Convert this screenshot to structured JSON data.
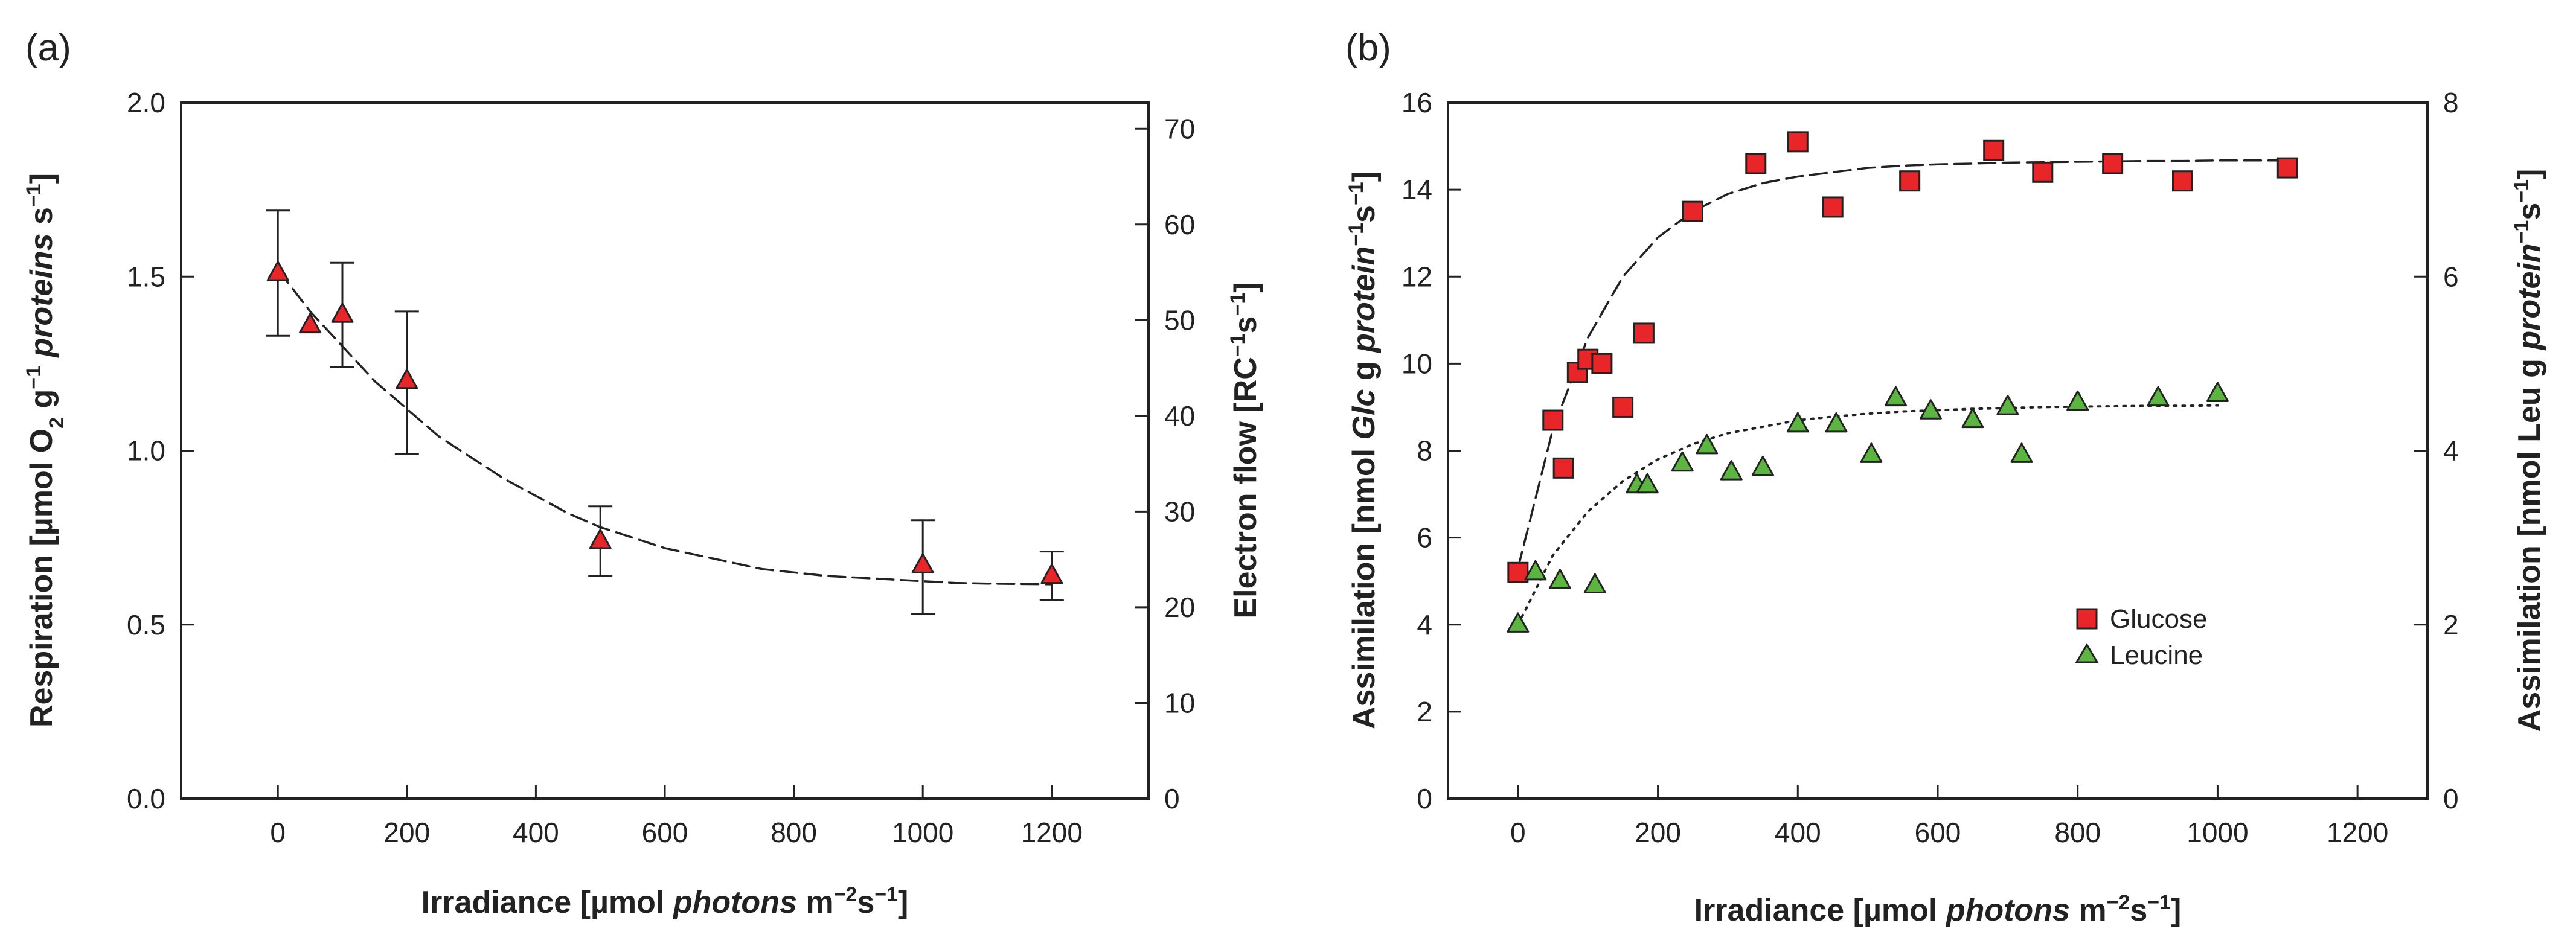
{
  "chart_data": [
    {
      "type": "scatter",
      "panel_label": "(a)",
      "xlabel": {
        "pre": "Irradiance [µmol ",
        "em": "photons",
        "post": " m",
        "sup1": "−2",
        "mid": "s",
        "sup2": "−1",
        "end": "]"
      },
      "ylabel": {
        "pre": "Respiration [µmol O",
        "sub": "2",
        "mid": " g",
        "sup1": "−1",
        "sp": " ",
        "em": "proteins",
        "mid2": " s",
        "sup2": "−1",
        "end": "]"
      },
      "y2label": {
        "pre": "Electron flow [RC",
        "sup1": "−1",
        "mid": "s",
        "sup2": "−1",
        "end": "]"
      },
      "xlim": [
        -150,
        1350
      ],
      "ylim": [
        0,
        2.0
      ],
      "y2lim": [
        0,
        72.73
      ],
      "xticks": [
        0,
        200,
        400,
        600,
        800,
        1000,
        1200
      ],
      "yticks": [
        "0.0",
        "0.5",
        "1.0",
        "1.5",
        "2.0"
      ],
      "y2ticks": [
        0,
        10,
        20,
        30,
        40,
        50,
        60,
        70
      ],
      "series": [
        {
          "name": "Respiration",
          "marker": "triangle",
          "color": "#e8262a",
          "x": [
            0,
            50,
            100,
            200,
            500,
            1000,
            1200
          ],
          "y": [
            1.51,
            1.36,
            1.39,
            1.2,
            0.74,
            0.67,
            0.64
          ],
          "err_low": [
            1.33,
            null,
            1.24,
            0.99,
            0.64,
            0.53,
            0.57
          ],
          "err_high": [
            1.69,
            null,
            1.54,
            1.4,
            0.84,
            0.8,
            0.71
          ]
        }
      ],
      "fit": {
        "style": "dashed",
        "x_range": [
          0,
          1200
        ],
        "y": [
          1.52,
          1.4,
          1.3,
          1.2,
          1.12,
          1.04,
          0.98,
          0.92,
          0.87,
          0.82,
          0.78,
          0.75,
          0.72,
          0.7,
          0.68,
          0.66,
          0.65,
          0.64,
          0.635,
          0.63,
          0.625,
          0.62,
          0.618,
          0.617,
          0.616
        ]
      }
    },
    {
      "type": "scatter",
      "panel_label": "(b)",
      "xlabel": {
        "pre": "Irradiance [µmol ",
        "em": "photons",
        "post": " m",
        "sup1": "−2",
        "mid": "s",
        "sup2": "−1",
        "end": "]"
      },
      "ylabel": {
        "pre": "Assimilation [nmol ",
        "em": "Glc",
        "mid": " g ",
        "em2": "protein",
        "sup1": "−1",
        "mid2": "s",
        "sup2": "−1",
        "end": "]"
      },
      "y2label": {
        "pre": "Assimilation [nmol Leu g ",
        "em": "protein",
        "sup1": "−1",
        "mid": "s",
        "sup2": "−1",
        "end": "]"
      },
      "xlim": [
        -100,
        1300
      ],
      "ylim": [
        0,
        16
      ],
      "y2lim": [
        0,
        8
      ],
      "xticks": [
        0,
        200,
        400,
        600,
        800,
        1000,
        1200
      ],
      "yticks": [
        0,
        2,
        4,
        6,
        8,
        10,
        12,
        14,
        16
      ],
      "y2ticks": [
        0,
        2,
        4,
        6,
        8
      ],
      "legend": {
        "position": "center-right",
        "entries": [
          "Glucose",
          "Leucine"
        ]
      },
      "series": [
        {
          "name": "Glucose",
          "marker": "square",
          "color": "#e8262a",
          "axis": "left",
          "x": [
            0,
            50,
            65,
            85,
            100,
            120,
            150,
            180,
            250,
            340,
            400,
            450,
            560,
            680,
            750,
            850,
            950,
            1100
          ],
          "y": [
            5.2,
            8.7,
            7.6,
            9.8,
            10.1,
            10.0,
            9.0,
            10.7,
            13.5,
            14.6,
            15.1,
            13.6,
            14.2,
            14.9,
            14.4,
            14.6,
            14.2,
            14.5
          ]
        },
        {
          "name": "Leucine",
          "marker": "triangle",
          "color": "#5db541",
          "axis": "left",
          "x": [
            0,
            25,
            60,
            110,
            170,
            185,
            235,
            270,
            305,
            350,
            400,
            455,
            505,
            540,
            590,
            650,
            700,
            720,
            800,
            915,
            1000
          ],
          "y": [
            4.0,
            5.2,
            5.0,
            4.9,
            7.2,
            7.2,
            7.7,
            8.1,
            7.5,
            7.6,
            8.6,
            8.6,
            7.9,
            9.2,
            8.9,
            8.7,
            9.0,
            7.9,
            9.1,
            9.2,
            9.3
          ]
        }
      ],
      "fits": [
        {
          "series": "Glucose",
          "style": "dashed",
          "x_range": [
            0,
            1100
          ],
          "y": [
            5.3,
            8.5,
            10.6,
            12.0,
            12.9,
            13.5,
            13.9,
            14.15,
            14.3,
            14.4,
            14.5,
            14.55,
            14.58,
            14.6,
            14.62,
            14.63,
            14.64,
            14.65,
            14.66,
            14.66,
            14.67,
            14.67,
            14.67
          ]
        },
        {
          "series": "Leucine",
          "style": "dotted",
          "x_range": [
            0,
            1000
          ],
          "y": [
            4.0,
            5.6,
            6.6,
            7.3,
            7.8,
            8.15,
            8.4,
            8.55,
            8.7,
            8.78,
            8.85,
            8.9,
            8.93,
            8.96,
            8.98,
            9.0,
            9.01,
            9.02,
            9.03,
            9.03,
            9.04
          ]
        }
      ]
    }
  ]
}
